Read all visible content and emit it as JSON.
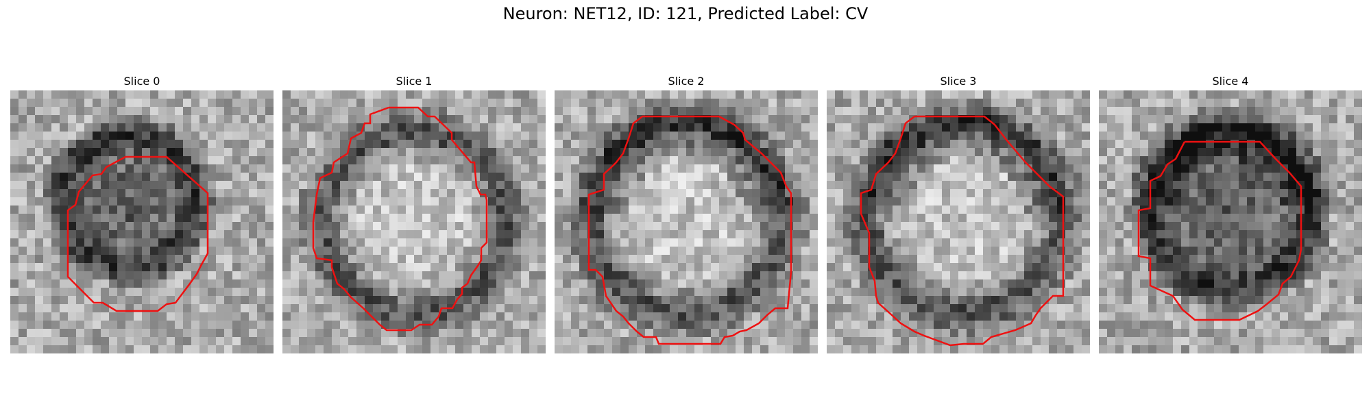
{
  "figure": {
    "title": "Neuron: NET12, ID: 121, Predicted Label: CV"
  },
  "slices": [
    {
      "label": "Slice 0",
      "grid": 32,
      "dark_center": [
        0.45,
        0.42
      ],
      "dark_radius": 0.28,
      "contour_color": "#ee1111"
    },
    {
      "label": "Slice 1",
      "grid": 32,
      "dark_center": [
        0.5,
        0.5
      ],
      "dark_radius": 0.38,
      "contour_color": "#ee1111"
    },
    {
      "label": "Slice 2",
      "grid": 32,
      "dark_center": [
        0.5,
        0.48
      ],
      "dark_radius": 0.4,
      "contour_color": "#ee1111"
    },
    {
      "label": "Slice 3",
      "grid": 32,
      "dark_center": [
        0.52,
        0.48
      ],
      "dark_radius": 0.4,
      "contour_color": "#ee1111"
    },
    {
      "label": "Slice 4",
      "grid": 32,
      "dark_center": [
        0.5,
        0.45
      ],
      "dark_radius": 0.34,
      "contour_color": "#ee1111"
    }
  ],
  "colors": {
    "background": "#ffffff",
    "contour": "#ee1111"
  }
}
